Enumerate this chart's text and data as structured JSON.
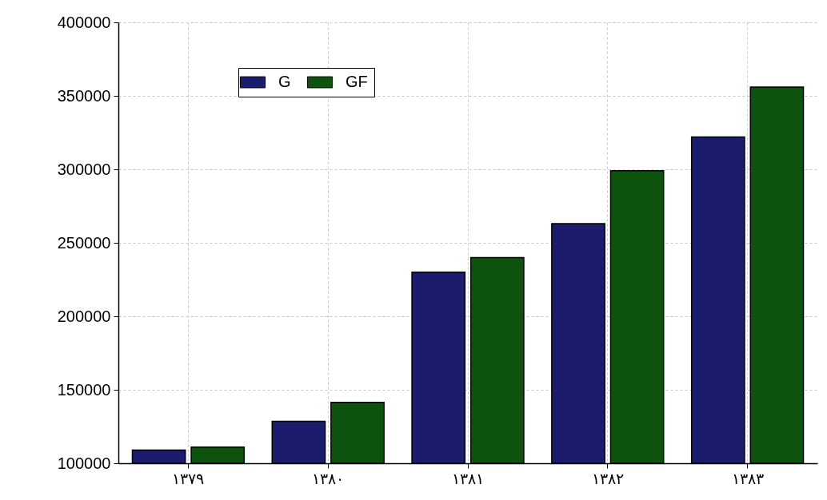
{
  "chart_data": {
    "type": "bar",
    "categories": [
      "۱۳۷۹",
      "۱۳۸۰",
      "۱۳۸۱",
      "۱۳۸۲",
      "۱۳۸۳"
    ],
    "series": [
      {
        "name": "G",
        "color": "#1c1c6e",
        "values": [
          109000,
          128500,
          230000,
          263000,
          322000
        ]
      },
      {
        "name": "GF",
        "color": "#0d520d",
        "values": [
          111000,
          141500,
          240000,
          299000,
          356000
        ]
      }
    ],
    "ylim": [
      100000,
      400000
    ],
    "yticks": [
      100000,
      150000,
      200000,
      250000,
      300000,
      350000,
      400000
    ],
    "grid": true,
    "legend": "top left"
  }
}
